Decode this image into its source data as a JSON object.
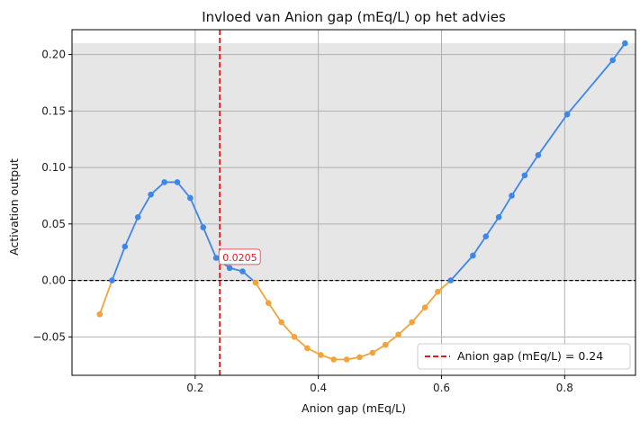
{
  "chart_data": {
    "type": "line",
    "title": "Invloed van Anion gap (mEq/L) op het advies",
    "xlabel": "Anion gap (mEq/L)",
    "ylabel": "Activation output",
    "xlim": [
      0.0,
      0.915
    ],
    "ylim": [
      -0.084,
      0.222
    ],
    "x_ticks": [
      0.2,
      0.4,
      0.6,
      0.8
    ],
    "x_tick_labels": [
      "0.2",
      "0.4",
      "0.6",
      "0.8"
    ],
    "y_ticks": [
      -0.05,
      0.0,
      0.05,
      0.1,
      0.15,
      0.2
    ],
    "y_tick_labels": [
      "−0.05",
      "0.00",
      "0.05",
      "0.10",
      "0.15",
      "0.20"
    ],
    "grid": true,
    "shaded_band": {
      "y_from": 0.0,
      "y_to": 0.21,
      "color": "#e6e6e6"
    },
    "zero_line": {
      "y": 0.0,
      "color": "#000000",
      "style": "dashed"
    },
    "reference_line": {
      "x": 0.24,
      "color": "#e11a1a",
      "style": "dashed",
      "label": "Anion gap (mEq/L) = 0.24"
    },
    "annotation": {
      "x": 0.24,
      "y": 0.0205,
      "text": "0.0205",
      "color": "#e11a1a"
    },
    "colors": {
      "positive": "#3d87e8",
      "negative": "#f2a43a"
    },
    "legend_position": "bottom-right",
    "x": [
      0.045,
      0.065,
      0.086,
      0.107,
      0.128,
      0.15,
      0.171,
      0.192,
      0.213,
      0.234,
      0.256,
      0.277,
      0.298,
      0.319,
      0.34,
      0.361,
      0.382,
      0.404,
      0.425,
      0.446,
      0.467,
      0.488,
      0.509,
      0.53,
      0.552,
      0.573,
      0.594,
      0.615,
      0.651,
      0.672,
      0.693,
      0.714,
      0.735,
      0.757,
      0.804,
      0.878,
      0.898
    ],
    "y": [
      -0.03,
      0.0,
      0.03,
      0.056,
      0.076,
      0.087,
      0.087,
      0.073,
      0.047,
      0.02,
      0.011,
      0.008,
      -0.002,
      -0.02,
      -0.037,
      -0.05,
      -0.06,
      -0.066,
      -0.07,
      -0.07,
      -0.068,
      -0.064,
      -0.057,
      -0.048,
      -0.037,
      -0.024,
      -0.01,
      0.0,
      0.022,
      0.039,
      0.056,
      0.075,
      0.093,
      0.111,
      0.147,
      0.195,
      0.21
    ]
  }
}
